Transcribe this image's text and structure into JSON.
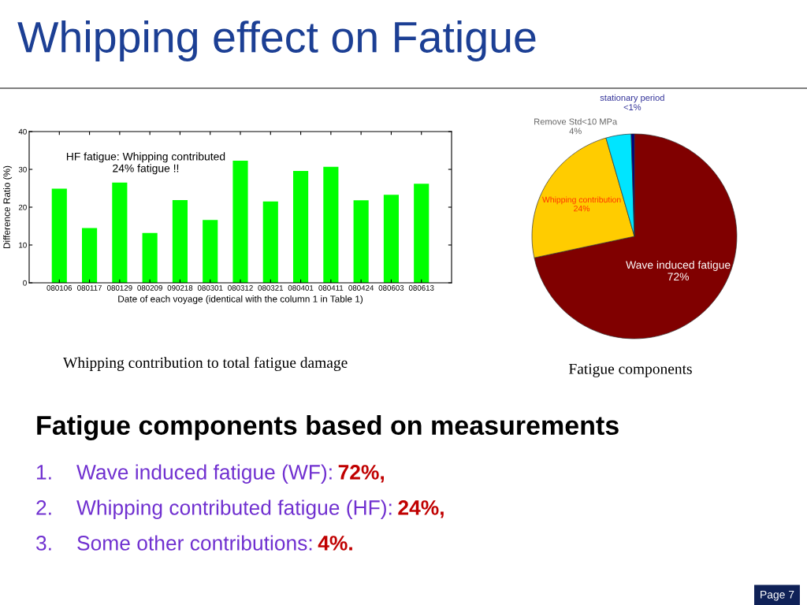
{
  "chart_data": [
    {
      "type": "other",
      "title": "Whipping effect on Fatigue",
      "annotations": [
        "Page 7"
      ]
    },
    {
      "type": "bar",
      "xlabel": "Date of each voyage (identical with the column 1 in Table 1)",
      "ylabel": "Difference Ratio (%)",
      "categories": [
        "080106",
        "080117",
        "080129",
        "080209",
        "090218",
        "080301",
        "080312",
        "080321",
        "080401",
        "080411",
        "080424",
        "080603",
        "080613"
      ],
      "values": [
        24.9,
        14.5,
        26.5,
        13.2,
        21.9,
        16.6,
        32.3,
        21.5,
        29.6,
        30.7,
        21.8,
        23.3,
        26.2
      ],
      "color": "#00ff00",
      "ylim": [
        0,
        40
      ],
      "yticks": [
        0,
        10,
        20,
        30,
        40
      ],
      "annotations": [
        "HF fatigue: Whipping contributed\n24% fatigue !!",
        "Whipping contribution to total fatigue damage"
      ]
    },
    {
      "type": "pie",
      "categories": [
        "Wave induced fatigue",
        "Whipping contribution",
        "Remove Std<10 MPa",
        "stationary period"
      ],
      "values": [
        72,
        24,
        4,
        0.5
      ],
      "value_labels": [
        "72%",
        "24%",
        "4%",
        "<1%"
      ],
      "colors": [
        "#800000",
        "#ffcc00",
        "#00e5ff",
        "#000080"
      ],
      "annotations": [
        "Fatigue components"
      ]
    },
    {
      "type": "other",
      "title": "Fatigue components based on measurements",
      "annotations": [
        "1. Wave induced fatigue (WF): 72%,",
        "2. Whipping contributed fatigue (HF): 24%,",
        "3. Some other contributions: 4%."
      ]
    }
  ]
}
